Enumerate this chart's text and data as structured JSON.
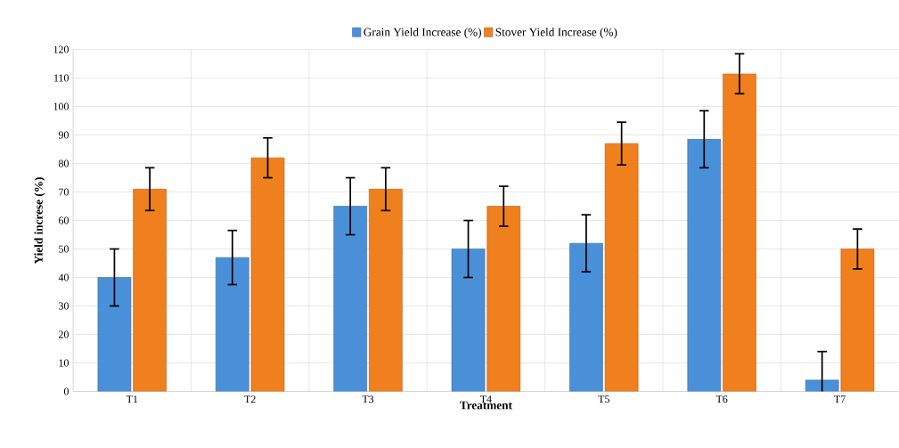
{
  "chart_data": {
    "type": "bar",
    "xlabel": "Treatment",
    "ylabel": "Yield increse (%)",
    "categories": [
      "T1",
      "T2",
      "T3",
      "T4",
      "T5",
      "T6",
      "T7"
    ],
    "series": [
      {
        "name": "Grain Yield Increase (%)",
        "color": "#4a90d9",
        "values": [
          40,
          47,
          65,
          50,
          52,
          88.5,
          4
        ],
        "errors": [
          10,
          9.5,
          10,
          10,
          10,
          10,
          10
        ]
      },
      {
        "name": "Stover Yield Increase (%)",
        "color": "#f07f1e",
        "values": [
          71,
          82,
          71,
          65,
          87,
          111.5,
          50
        ],
        "errors": [
          7.5,
          7,
          7.5,
          7,
          7.5,
          7,
          7
        ]
      }
    ],
    "ylim": [
      0,
      120
    ],
    "yticks": [
      0,
      10,
      20,
      30,
      40,
      50,
      60,
      70,
      80,
      90,
      100,
      110,
      120
    ],
    "grid": true,
    "legend": "top"
  }
}
